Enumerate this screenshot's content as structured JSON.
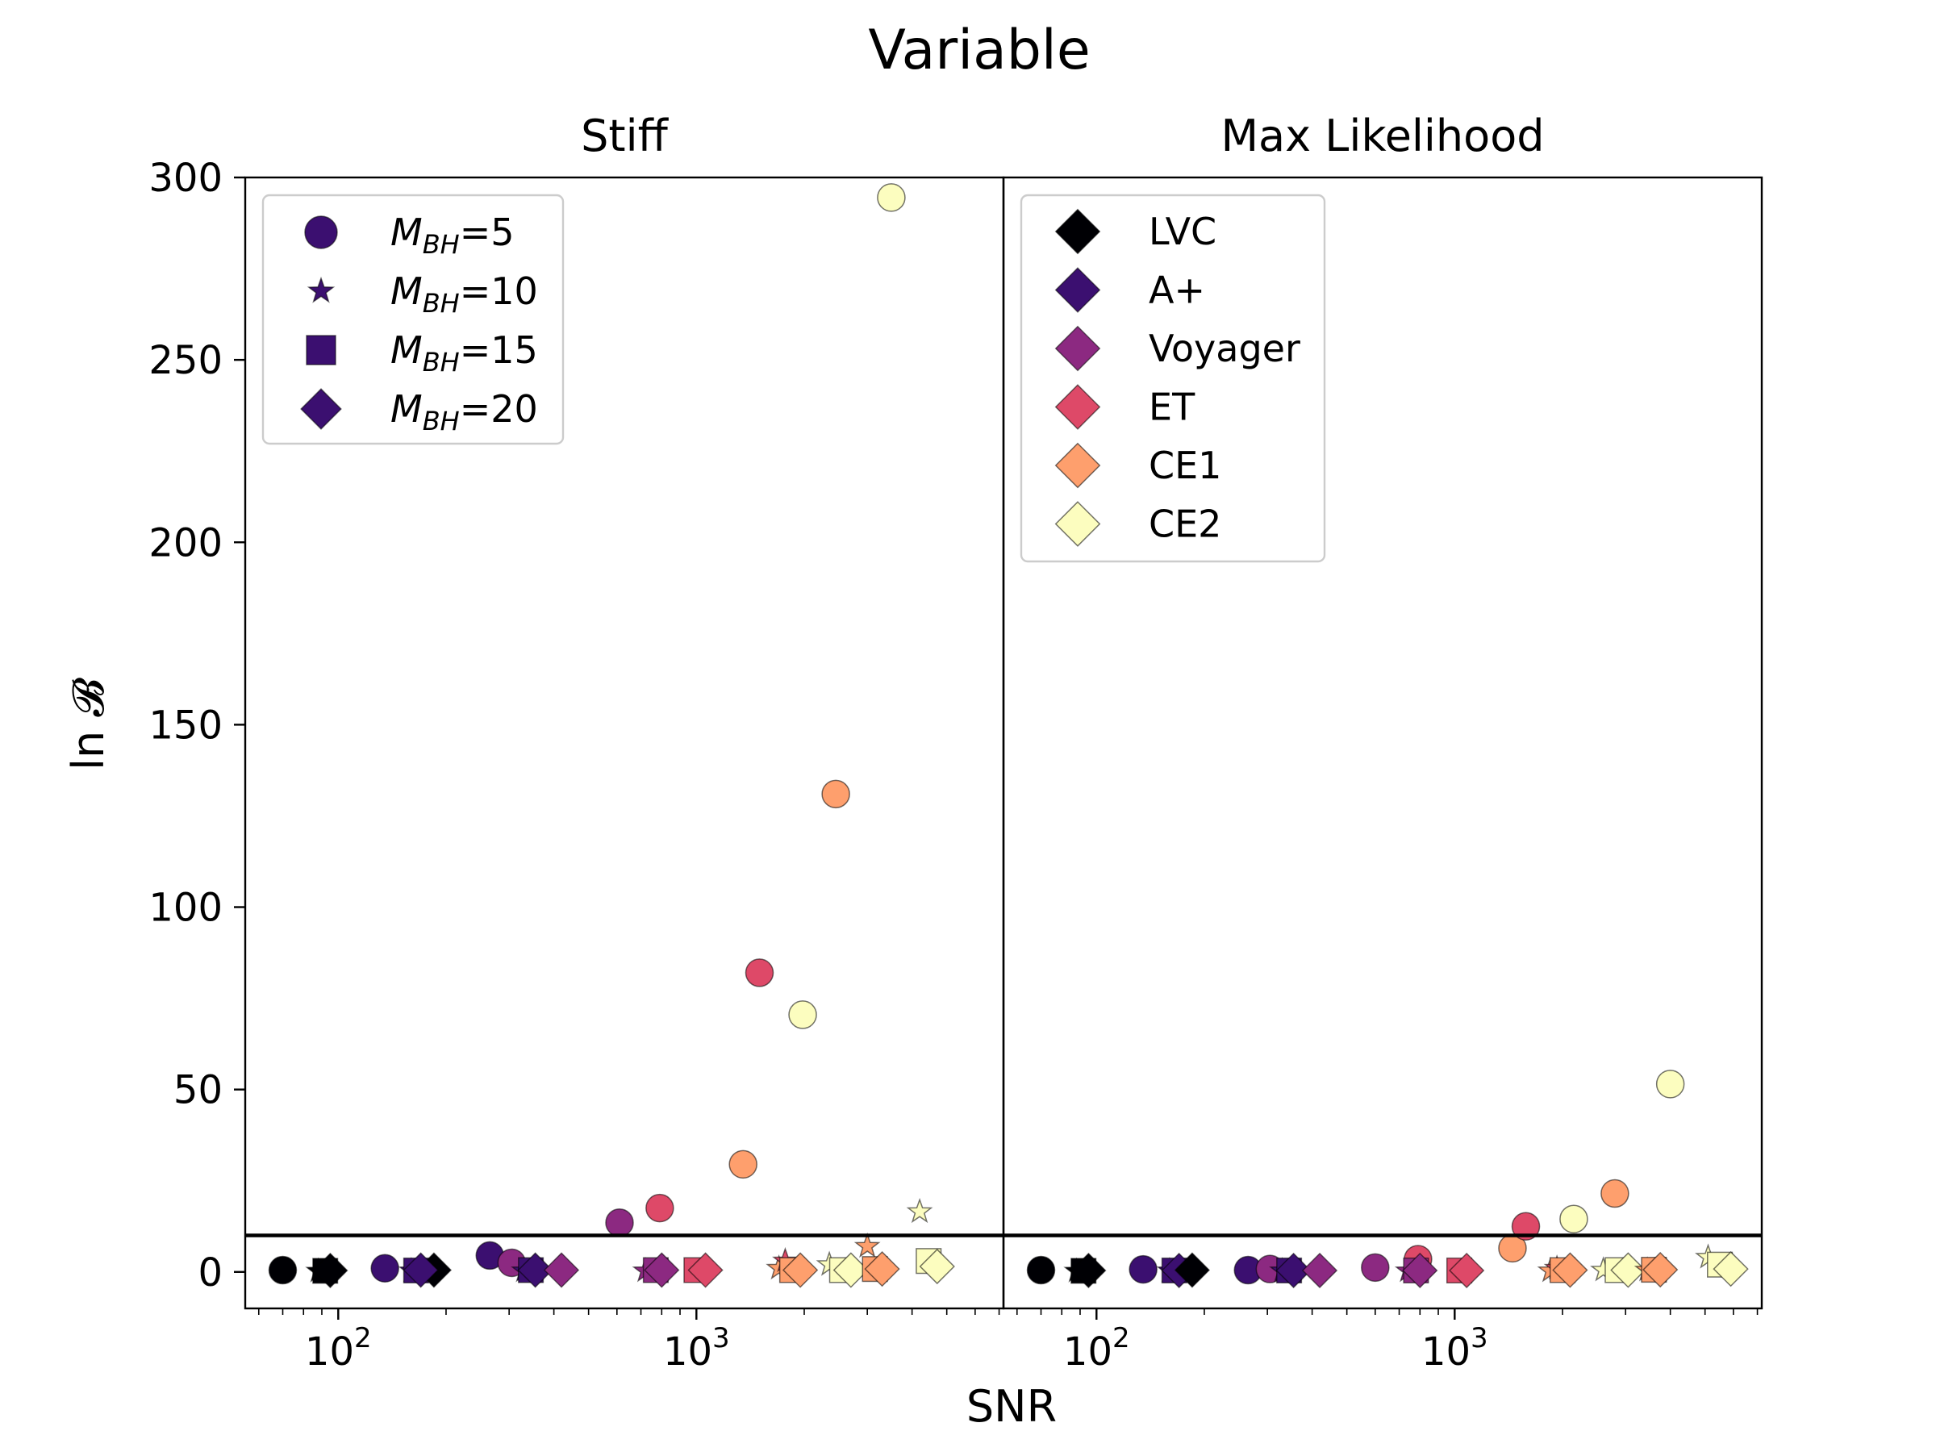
{
  "figure": {
    "suptitle": "Variable"
  },
  "colors": {
    "LVC": "#000004",
    "A+": "#3b0f70",
    "Voyager": "#8c2981",
    "ET": "#de4968",
    "CE1": "#fe9f6d",
    "CE2": "#fcfdbf"
  },
  "shared": {
    "xlabel": "SNR",
    "ylabel": "ln 𝓑",
    "xscale": "log",
    "xlim": [
      55,
      7200
    ],
    "ylim": [
      -10,
      300
    ],
    "yticks": [
      0,
      50,
      100,
      150,
      200,
      250,
      300
    ],
    "xticks": [
      {
        "value": 100,
        "base": "10",
        "exp": "2"
      },
      {
        "value": 1000,
        "base": "10",
        "exp": "3"
      }
    ],
    "threshold": 10,
    "grid": false
  },
  "legend_mass": {
    "placement": "upper-left",
    "entries": [
      {
        "marker": "circle",
        "sym": "M",
        "sub": "BH",
        "val": "=5"
      },
      {
        "marker": "star",
        "sym": "M",
        "sub": "BH",
        "val": "=10"
      },
      {
        "marker": "square",
        "sym": "M",
        "sub": "BH",
        "val": "=15"
      },
      {
        "marker": "diamond",
        "sym": "M",
        "sub": "BH",
        "val": "=20"
      }
    ]
  },
  "legend_detector": {
    "placement": "upper-left",
    "entries": [
      "LVC",
      "A+",
      "Voyager",
      "ET",
      "CE1",
      "CE2"
    ]
  },
  "chart_data": [
    {
      "type": "scatter",
      "title": "Stiff",
      "points": [
        {
          "detector": "LVC",
          "marker": "circle",
          "x": 70,
          "y": 0.5
        },
        {
          "detector": "LVC",
          "marker": "star",
          "x": 88,
          "y": 0.2
        },
        {
          "detector": "LVC",
          "marker": "square",
          "x": 92,
          "y": 0.3
        },
        {
          "detector": "LVC",
          "marker": "diamond",
          "x": 95,
          "y": 0.4
        },
        {
          "detector": "A+",
          "marker": "circle",
          "x": 135,
          "y": 1
        },
        {
          "detector": "A+",
          "marker": "star",
          "x": 160,
          "y": 0.3
        },
        {
          "detector": "A+",
          "marker": "square",
          "x": 165,
          "y": 0.4
        },
        {
          "detector": "LVC",
          "marker": "diamond",
          "x": 185,
          "y": 0.5
        },
        {
          "detector": "A+",
          "marker": "diamond",
          "x": 170,
          "y": 0.5
        },
        {
          "detector": "A+",
          "marker": "circle",
          "x": 265,
          "y": 4.5
        },
        {
          "detector": "Voyager",
          "marker": "circle",
          "x": 305,
          "y": 2.5
        },
        {
          "detector": "A+",
          "marker": "star",
          "x": 330,
          "y": 0.3
        },
        {
          "detector": "A+",
          "marker": "square",
          "x": 345,
          "y": 0.5
        },
        {
          "detector": "A+",
          "marker": "diamond",
          "x": 355,
          "y": 0.5
        },
        {
          "detector": "Voyager",
          "marker": "diamond",
          "x": 420,
          "y": 0.5
        },
        {
          "detector": "Voyager",
          "marker": "circle",
          "x": 610,
          "y": 13.5
        },
        {
          "detector": "Voyager",
          "marker": "star",
          "x": 720,
          "y": 0.3
        },
        {
          "detector": "ET",
          "marker": "circle",
          "x": 790,
          "y": 17.5
        },
        {
          "detector": "Voyager",
          "marker": "square",
          "x": 770,
          "y": 0.5
        },
        {
          "detector": "Voyager",
          "marker": "diamond",
          "x": 800,
          "y": 0.5
        },
        {
          "detector": "ET",
          "marker": "square",
          "x": 1000,
          "y": 0.5
        },
        {
          "detector": "ET",
          "marker": "diamond",
          "x": 1060,
          "y": 0.5
        },
        {
          "detector": "CE1",
          "marker": "circle",
          "x": 1350,
          "y": 29.5
        },
        {
          "detector": "ET",
          "marker": "circle",
          "x": 1500,
          "y": 82
        },
        {
          "detector": "CE1",
          "marker": "star",
          "x": 1700,
          "y": 1
        },
        {
          "detector": "ET",
          "marker": "star",
          "x": 1770,
          "y": 3
        },
        {
          "detector": "CE1",
          "marker": "square",
          "x": 1850,
          "y": 0.5
        },
        {
          "detector": "CE1",
          "marker": "diamond",
          "x": 1950,
          "y": 0.5
        },
        {
          "detector": "CE2",
          "marker": "circle",
          "x": 1980,
          "y": 70.5
        },
        {
          "detector": "CE1",
          "marker": "circle",
          "x": 2450,
          "y": 131
        },
        {
          "detector": "CE2",
          "marker": "star",
          "x": 2350,
          "y": 2
        },
        {
          "detector": "CE2",
          "marker": "square",
          "x": 2550,
          "y": 0.5
        },
        {
          "detector": "CE2",
          "marker": "diamond",
          "x": 2700,
          "y": 0.5
        },
        {
          "detector": "CE1",
          "marker": "star",
          "x": 3000,
          "y": 7
        },
        {
          "detector": "CE1",
          "marker": "square",
          "x": 3150,
          "y": 0.8
        },
        {
          "detector": "CE1",
          "marker": "diamond",
          "x": 3300,
          "y": 0.8
        },
        {
          "detector": "CE2",
          "marker": "circle",
          "x": 3500,
          "y": 294.5
        },
        {
          "detector": "CE2",
          "marker": "star",
          "x": 4200,
          "y": 16.5
        },
        {
          "detector": "CE2",
          "marker": "square",
          "x": 4450,
          "y": 3
        },
        {
          "detector": "CE2",
          "marker": "diamond",
          "x": 4700,
          "y": 1.5
        }
      ]
    },
    {
      "type": "scatter",
      "title": "Max Likelihood",
      "points": [
        {
          "detector": "LVC",
          "marker": "circle",
          "x": 70,
          "y": 0.5
        },
        {
          "detector": "LVC",
          "marker": "star",
          "x": 88,
          "y": 0.2
        },
        {
          "detector": "LVC",
          "marker": "square",
          "x": 92,
          "y": 0.3
        },
        {
          "detector": "LVC",
          "marker": "diamond",
          "x": 95,
          "y": 0.4
        },
        {
          "detector": "A+",
          "marker": "circle",
          "x": 135,
          "y": 0.7
        },
        {
          "detector": "A+",
          "marker": "star",
          "x": 160,
          "y": 0.3
        },
        {
          "detector": "A+",
          "marker": "square",
          "x": 165,
          "y": 0.4
        },
        {
          "detector": "A+",
          "marker": "diamond",
          "x": 170,
          "y": 0.4
        },
        {
          "detector": "LVC",
          "marker": "diamond",
          "x": 185,
          "y": 0.5
        },
        {
          "detector": "A+",
          "marker": "circle",
          "x": 265,
          "y": 0.5
        },
        {
          "detector": "Voyager",
          "marker": "circle",
          "x": 305,
          "y": 0.8
        },
        {
          "detector": "A+",
          "marker": "star",
          "x": 330,
          "y": 0.3
        },
        {
          "detector": "A+",
          "marker": "square",
          "x": 345,
          "y": 0.4
        },
        {
          "detector": "A+",
          "marker": "diamond",
          "x": 355,
          "y": 0.4
        },
        {
          "detector": "Voyager",
          "marker": "diamond",
          "x": 420,
          "y": 0.4
        },
        {
          "detector": "Voyager",
          "marker": "circle",
          "x": 600,
          "y": 1.2
        },
        {
          "detector": "Voyager",
          "marker": "star",
          "x": 740,
          "y": 0.3
        },
        {
          "detector": "ET",
          "marker": "circle",
          "x": 790,
          "y": 3.5
        },
        {
          "detector": "Voyager",
          "marker": "square",
          "x": 780,
          "y": 0.4
        },
        {
          "detector": "Voyager",
          "marker": "diamond",
          "x": 800,
          "y": 0.4
        },
        {
          "detector": "ET",
          "marker": "square",
          "x": 1030,
          "y": 0.4
        },
        {
          "detector": "ET",
          "marker": "diamond",
          "x": 1080,
          "y": 0.4
        },
        {
          "detector": "CE1",
          "marker": "circle",
          "x": 1450,
          "y": 6.5
        },
        {
          "detector": "ET",
          "marker": "circle",
          "x": 1580,
          "y": 12.5
        },
        {
          "detector": "CE1",
          "marker": "star",
          "x": 1850,
          "y": 0.3
        },
        {
          "detector": "ET",
          "marker": "star",
          "x": 1930,
          "y": 1
        },
        {
          "detector": "CE1",
          "marker": "square",
          "x": 2000,
          "y": 0.5
        },
        {
          "detector": "CE1",
          "marker": "diamond",
          "x": 2100,
          "y": 0.5
        },
        {
          "detector": "CE2",
          "marker": "circle",
          "x": 2150,
          "y": 14.5
        },
        {
          "detector": "CE2",
          "marker": "star",
          "x": 2600,
          "y": 0.5
        },
        {
          "detector": "CE1",
          "marker": "circle",
          "x": 2800,
          "y": 21.5
        },
        {
          "detector": "CE2",
          "marker": "square",
          "x": 2850,
          "y": 0.5
        },
        {
          "detector": "CE2",
          "marker": "diamond",
          "x": 3050,
          "y": 0.5
        },
        {
          "detector": "CE1",
          "marker": "star",
          "x": 3450,
          "y": 0.5
        },
        {
          "detector": "CE1",
          "marker": "square",
          "x": 3600,
          "y": 0.6
        },
        {
          "detector": "CE1",
          "marker": "diamond",
          "x": 3750,
          "y": 0.6
        },
        {
          "detector": "CE2",
          "marker": "circle",
          "x": 4000,
          "y": 51.5
        },
        {
          "detector": "CE2",
          "marker": "star",
          "x": 5100,
          "y": 4
        },
        {
          "detector": "CE2",
          "marker": "square",
          "x": 5500,
          "y": 2
        },
        {
          "detector": "CE2",
          "marker": "diamond",
          "x": 5900,
          "y": 0.8
        }
      ]
    }
  ]
}
